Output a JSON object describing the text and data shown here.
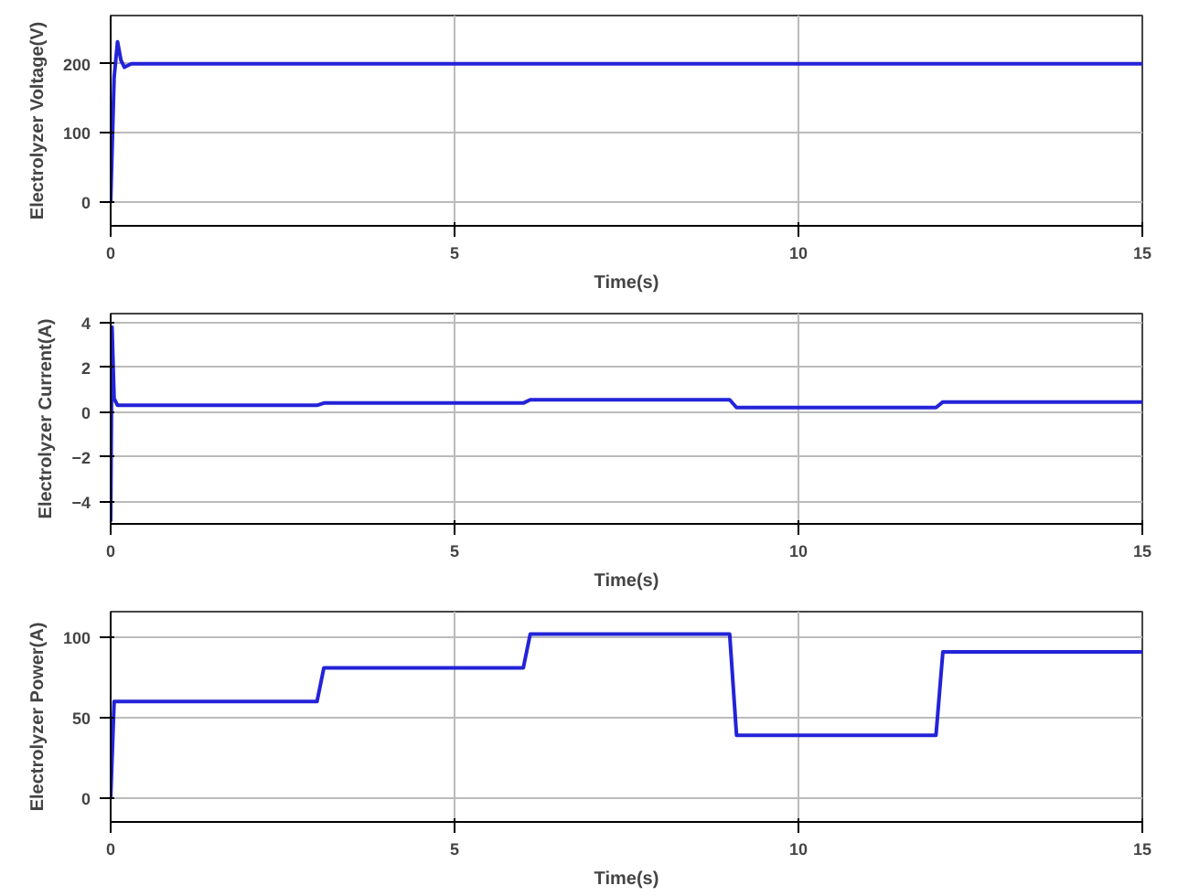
{
  "chart_data": [
    {
      "type": "line",
      "xlabel": "Time(s)",
      "ylabel": "Electrolyzer Voltage(V)",
      "xlim": [
        0,
        15
      ],
      "ylim": [
        -35,
        270
      ],
      "xticks": [
        0,
        5,
        10,
        15
      ],
      "yticks": [
        0,
        100,
        200
      ],
      "grid": true,
      "series": [
        {
          "color": "#2323d8",
          "x": [
            0,
            0.05,
            0.1,
            0.15,
            0.2,
            0.3,
            15
          ],
          "values": [
            0,
            180,
            232,
            205,
            195,
            200,
            200
          ]
        }
      ]
    },
    {
      "type": "line",
      "xlabel": "Time(s)",
      "ylabel": "Electrolyzer Current(A)",
      "xlim": [
        0,
        15
      ],
      "ylim": [
        -5,
        4.4
      ],
      "xticks": [
        0,
        5,
        10,
        15
      ],
      "yticks": [
        -4,
        -2,
        0,
        2,
        4
      ],
      "grid": true,
      "series": [
        {
          "color": "#2323d8",
          "x": [
            0,
            0.02,
            0.05,
            0.1,
            3,
            3.1,
            6,
            6.1,
            9,
            9.1,
            12,
            12.1,
            15
          ],
          "values": [
            -4.9,
            3.8,
            0.6,
            0.3,
            0.3,
            0.4,
            0.4,
            0.55,
            0.55,
            0.2,
            0.2,
            0.45,
            0.45
          ]
        }
      ]
    },
    {
      "type": "line",
      "xlabel": "Time(s)",
      "ylabel": "Electrolyzer Power(A)",
      "xlim": [
        0,
        15
      ],
      "ylim": [
        -15,
        116
      ],
      "xticks": [
        0,
        5,
        10,
        15
      ],
      "yticks": [
        0,
        50,
        100
      ],
      "grid": true,
      "series": [
        {
          "color": "#2323d8",
          "x": [
            0,
            0.05,
            3,
            3.1,
            6,
            6.1,
            9,
            9.1,
            12,
            12.1,
            15
          ],
          "values": [
            0,
            60,
            60,
            81,
            81,
            102,
            102,
            39,
            39,
            91,
            91
          ]
        }
      ]
    }
  ]
}
